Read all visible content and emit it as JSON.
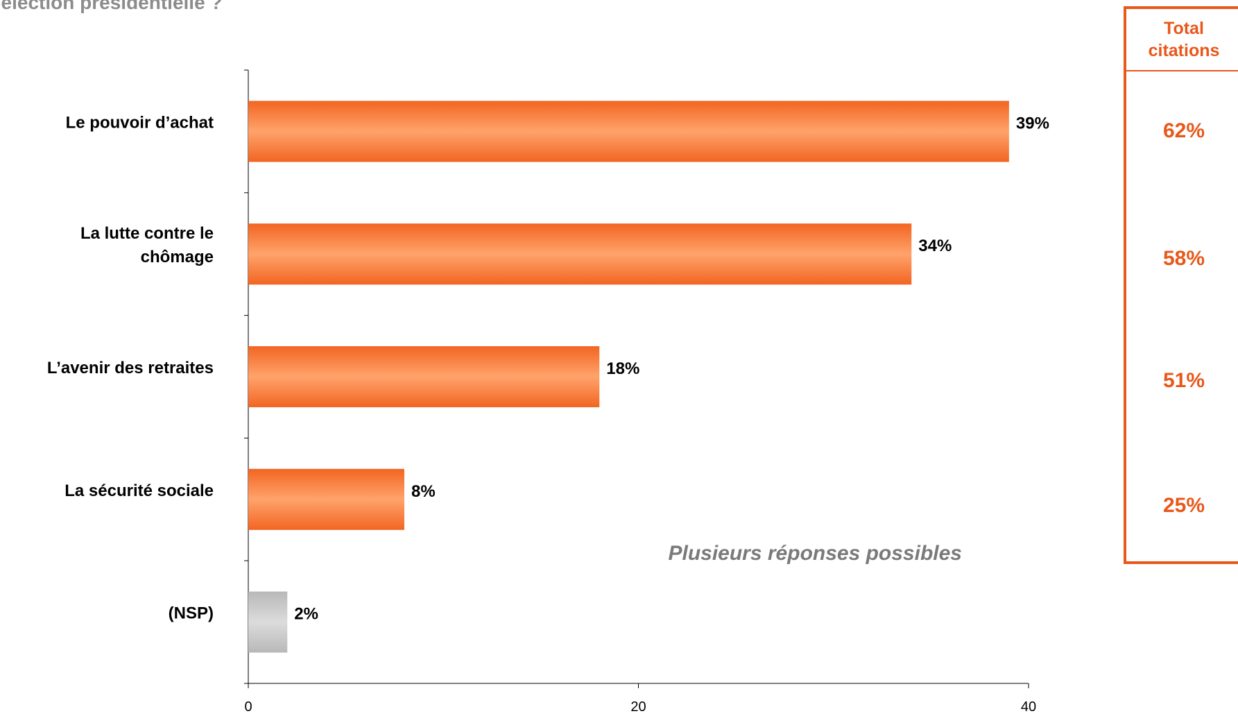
{
  "title": "l’élection présidentielle ?",
  "chart_data": {
    "type": "bar",
    "orientation": "horizontal",
    "categories": [
      "Le pouvoir d’achat",
      "La lutte contre le chômage",
      "L’avenir des retraites",
      "La sécurité sociale",
      "(NSP)"
    ],
    "category_lines": [
      [
        "Le pouvoir d’achat"
      ],
      [
        "La lutte contre le",
        "chômage"
      ],
      [
        "L’avenir des retraites"
      ],
      [
        "La sécurité sociale"
      ],
      [
        "(NSP)"
      ]
    ],
    "values": [
      39,
      34,
      18,
      8,
      2
    ],
    "value_labels": [
      "39%",
      "34%",
      "18%",
      "8%",
      "2%"
    ],
    "bar_colors": [
      "#f26522",
      "#f26522",
      "#f26522",
      "#f26522",
      "#c8c8c8"
    ],
    "xlim": [
      0,
      40
    ],
    "xticks": [
      0,
      20,
      40
    ],
    "xtick_labels": [
      "0",
      "20",
      "40"
    ],
    "grid": false,
    "annotation": "Plusieurs réponses possibles"
  },
  "total_citations": {
    "header_lines": [
      "Total",
      "citations"
    ],
    "values": [
      "62%",
      "58%",
      "51%",
      "25%"
    ]
  },
  "colors": {
    "accent": "#e8581a",
    "bar": "#f26522",
    "bar_light": "#ffa36b",
    "nsp_bar": "#c8c8c8",
    "title": "#8c8c8c",
    "annotation": "#7a7a7a"
  }
}
